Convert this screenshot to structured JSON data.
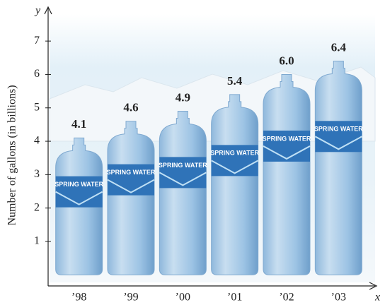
{
  "chart_data": {
    "type": "bar",
    "x_label": "x",
    "y_label": "y",
    "y_title": "Number of gallons (in billions)",
    "categories": [
      "’98",
      "’99",
      "’00",
      "’01",
      "’02",
      "’03"
    ],
    "values": [
      4.1,
      4.6,
      4.9,
      5.4,
      6.0,
      6.4
    ],
    "value_labels": [
      "4.1",
      "4.6",
      "4.9",
      "5.4",
      "6.0",
      "6.4"
    ],
    "bottle_text": "SPRING WATER",
    "color": "#9ec4e6",
    "ylim": [
      0,
      7.5
    ],
    "yticks": [
      1,
      2,
      3,
      4,
      5,
      6,
      7
    ]
  }
}
